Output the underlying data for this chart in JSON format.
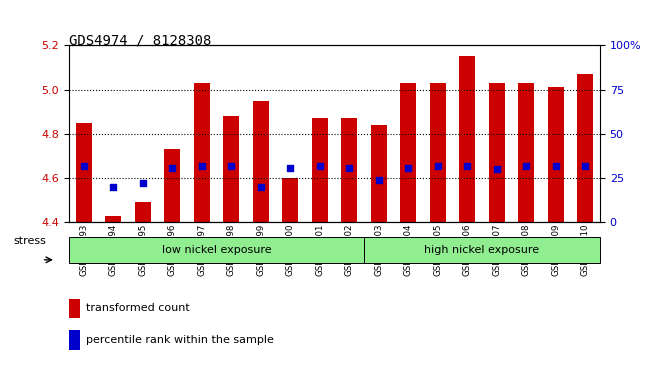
{
  "title": "GDS4974 / 8128308",
  "samples": [
    "GSM992693",
    "GSM992694",
    "GSM992695",
    "GSM992696",
    "GSM992697",
    "GSM992698",
    "GSM992699",
    "GSM992700",
    "GSM992701",
    "GSM992702",
    "GSM992703",
    "GSM992704",
    "GSM992705",
    "GSM992706",
    "GSM992707",
    "GSM992708",
    "GSM992709",
    "GSM992710"
  ],
  "transformed_count": [
    4.85,
    4.43,
    4.49,
    4.73,
    5.03,
    4.88,
    4.95,
    4.6,
    4.87,
    4.87,
    4.84,
    5.03,
    5.03,
    5.15,
    5.03,
    5.03,
    5.01,
    5.07
  ],
  "percentile_rank": [
    32,
    20,
    22,
    31,
    32,
    32,
    20,
    31,
    32,
    31,
    24,
    31,
    32,
    32,
    30,
    32,
    32,
    32
  ],
  "bar_bottom": 4.4,
  "ylim_left": [
    4.4,
    5.2
  ],
  "ylim_right": [
    0,
    100
  ],
  "yticks_left": [
    4.4,
    4.6,
    4.8,
    5.0,
    5.2
  ],
  "yticks_right": [
    0,
    25,
    50,
    75,
    100
  ],
  "ytick_labels_right": [
    "0",
    "25",
    "50",
    "75",
    "100%"
  ],
  "bar_color": "#CC0000",
  "dot_color": "#0000CC",
  "group_labels": [
    "low nickel exposure",
    "high nickel exposure"
  ],
  "low_nickel_count": 10,
  "high_nickel_count": 8,
  "stress_label": "stress",
  "legend_items": [
    "transformed count",
    "percentile rank within the sample"
  ],
  "title_fontsize": 10,
  "axis_label_color_left": "#CC0000",
  "axis_label_color_right": "#0000CC",
  "background_color": "#ffffff",
  "group_bg_color": "#90EE90",
  "bar_width": 0.55
}
